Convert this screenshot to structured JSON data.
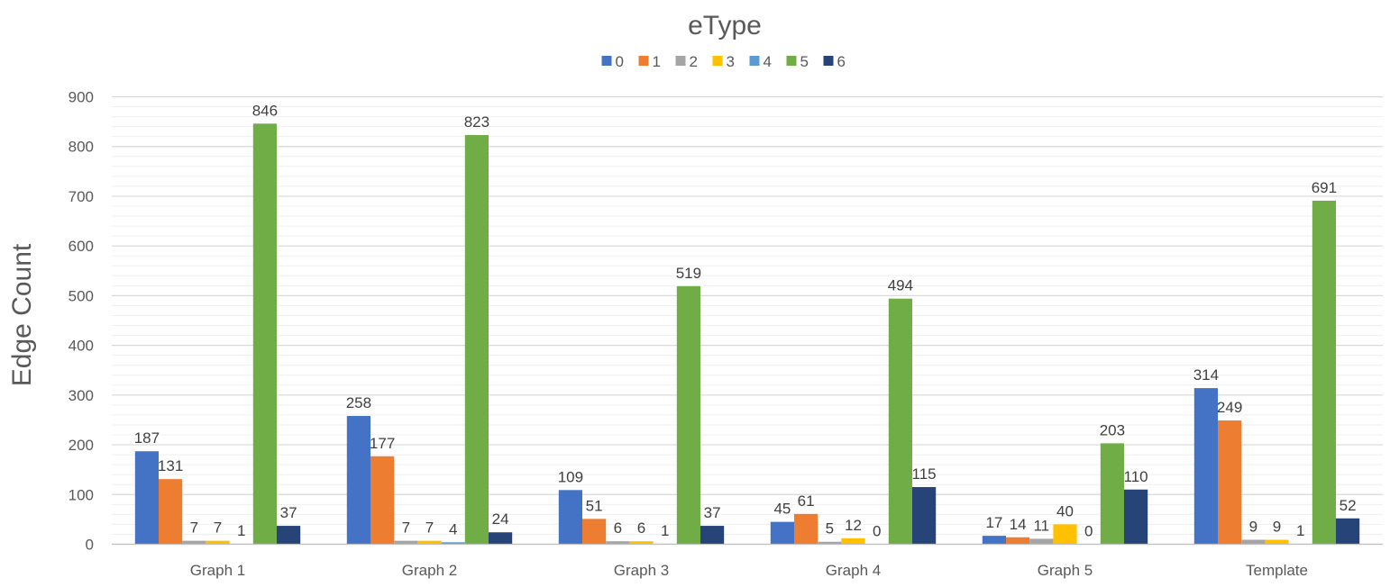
{
  "chart_data": {
    "type": "bar",
    "title": "eType",
    "xlabel": "",
    "ylabel": "Edge Count",
    "ylim": [
      0,
      900
    ],
    "yticks": [
      0,
      100,
      200,
      300,
      400,
      500,
      600,
      700,
      800,
      900
    ],
    "grid": true,
    "legend_position": "top",
    "categories": [
      "Graph 1",
      "Graph 2",
      "Graph 3",
      "Graph 4",
      "Graph 5",
      "Template"
    ],
    "series": [
      {
        "name": "0",
        "color": "#4472C4",
        "values": [
          187,
          258,
          109,
          45,
          17,
          314
        ]
      },
      {
        "name": "1",
        "color": "#ED7D31",
        "values": [
          131,
          177,
          51,
          61,
          14,
          249
        ]
      },
      {
        "name": "2",
        "color": "#A5A5A5",
        "values": [
          7,
          7,
          6,
          5,
          11,
          9
        ]
      },
      {
        "name": "3",
        "color": "#FFC000",
        "values": [
          7,
          7,
          6,
          12,
          40,
          9
        ]
      },
      {
        "name": "4",
        "color": "#5B9BD5",
        "values": [
          1,
          4,
          1,
          0,
          0,
          1
        ]
      },
      {
        "name": "5",
        "color": "#70AD47",
        "values": [
          846,
          823,
          519,
          494,
          203,
          691
        ]
      },
      {
        "name": "6",
        "color": "#264478",
        "values": [
          37,
          24,
          37,
          115,
          110,
          52
        ]
      }
    ]
  }
}
